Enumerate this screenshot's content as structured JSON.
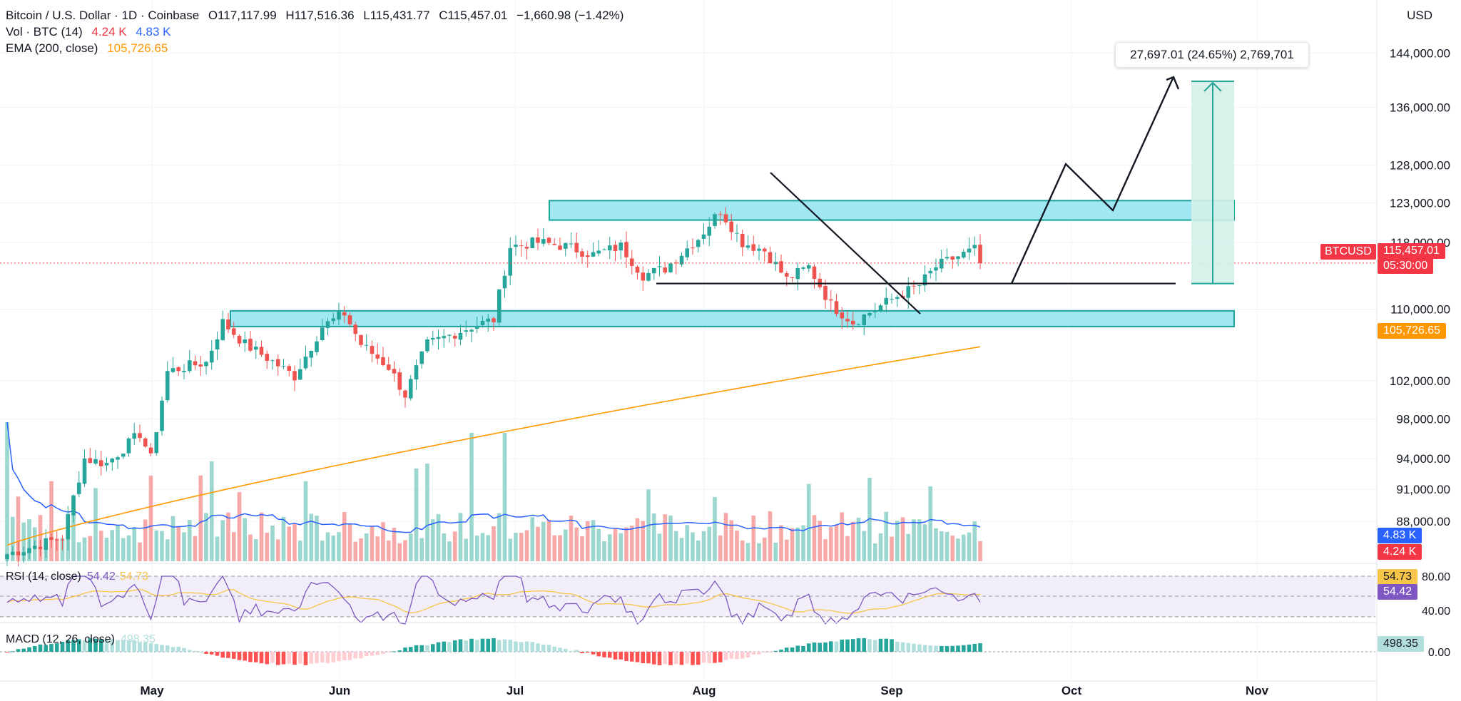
{
  "legend": {
    "title": "Bitcoin / U.S. Dollar · 1D · Coinbase",
    "open": "O117,117.99",
    "high": "H117,516.36",
    "low": "L115,431.77",
    "close": "C115,457.01",
    "change": "−1,660.98 (−1.42%)",
    "vol_label": "Vol · BTC (14)",
    "vol_value": "4.24 K",
    "vol_ma": "4.83 K",
    "ema_label": "EMA (200, close)",
    "ema_value": "105,726.65"
  },
  "currency": "USD",
  "measure_label": "27,697.01 (24.65%) 2,769,701",
  "price_axis": {
    "ticks": [
      "144,000.00",
      "136,000.00",
      "128,000.00",
      "123,000.00",
      "118,000.00",
      "110,000.00",
      "102,000.00",
      "98,000.00",
      "94,000.00",
      "91,000.00",
      "88,000.00"
    ],
    "tick_values": [
      144000,
      136000,
      128000,
      123000,
      118000,
      110000,
      102000,
      98000,
      94000,
      91000,
      88000
    ],
    "symbol_tag": "BTCUSD",
    "last_price_tag": "115,457.01",
    "countdown_tag": "05:30:00",
    "ema_tag": "105,726.65",
    "vol_ma_tag": "4.83 K",
    "vol_tag": "4.24 K"
  },
  "time_axis": {
    "labels": [
      "May",
      "Jun",
      "Jul",
      "Aug",
      "Sep",
      "Oct",
      "Nov"
    ]
  },
  "rsi": {
    "label": "RSI (14, close)",
    "value": "54.42",
    "ma_value": "54.73",
    "axis_ticks": [
      "80.00",
      "40.00"
    ],
    "tag_ma": "54.73",
    "tag_rsi": "54.42"
  },
  "macd": {
    "label": "MACD (12, 26, close)",
    "value": "498.35",
    "axis_tick": "0.00",
    "tag": "498.35"
  },
  "colors": {
    "up": "#26a69a",
    "down": "#ef5350",
    "ema": "#ff9800",
    "vol_ma": "#2962ff",
    "zone_fill": "#8fe3ee",
    "zone_border": "#1ba39c",
    "rsi": "#7e57c2",
    "rsi_ma": "#f7c548",
    "last_price": "#f23645",
    "projection": "#26a69a"
  },
  "chart_data": {
    "type": "candlestick",
    "title": "Bitcoin / U.S. Dollar · 1D · Coinbase",
    "y_scale": "log",
    "ylim": [
      84500,
      150000
    ],
    "x_months": [
      "May",
      "Jun",
      "Jul",
      "Aug",
      "Sep",
      "Oct",
      "Nov"
    ],
    "approx_close_path": [
      [
        0,
        85000
      ],
      [
        10,
        86500
      ],
      [
        14,
        94000
      ],
      [
        18,
        93500
      ],
      [
        24,
        96500
      ],
      [
        26,
        94000
      ],
      [
        29,
        103000
      ],
      [
        32,
        103500
      ],
      [
        36,
        104000
      ],
      [
        39,
        108500
      ],
      [
        43,
        106000
      ],
      [
        47,
        104500
      ],
      [
        52,
        102500
      ],
      [
        57,
        108000
      ],
      [
        61,
        109500
      ],
      [
        64,
        106000
      ],
      [
        69,
        103500
      ],
      [
        72,
        100500
      ],
      [
        76,
        106000
      ],
      [
        80,
        107000
      ],
      [
        84,
        108000
      ],
      [
        88,
        108800
      ],
      [
        91,
        117500
      ],
      [
        96,
        118000
      ],
      [
        101,
        117500
      ],
      [
        106,
        116500
      ],
      [
        111,
        117500
      ],
      [
        115,
        114000
      ],
      [
        119,
        114800
      ],
      [
        125,
        118500
      ],
      [
        129,
        122000
      ],
      [
        133,
        118000
      ],
      [
        137,
        117000
      ],
      [
        141,
        113500
      ],
      [
        145,
        115000
      ],
      [
        149,
        110500
      ],
      [
        153,
        108500
      ],
      [
        157,
        110000
      ],
      [
        161,
        111500
      ],
      [
        165,
        112800
      ],
      [
        168,
        115000
      ],
      [
        171,
        116000
      ],
      [
        175,
        117100
      ],
      [
        176,
        115457
      ]
    ],
    "ema200": {
      "name": "EMA (200, close)",
      "start": 85800,
      "end": 105726.65
    },
    "zones": [
      {
        "low": 120800,
        "high": 123300
      },
      {
        "low": 108000,
        "high": 109800
      }
    ],
    "support_line": 113000,
    "projection_target": 139500,
    "measure": {
      "from": 113000,
      "to": 140000,
      "label": "27,697.01 (24.65%) 2,769,701"
    },
    "last_price": 115457.01,
    "rsi_last": 54.42,
    "rsi_ma_last": 54.73,
    "macd_last": 498.35,
    "vol_last": 4.24,
    "vol_ma_last": 4.83
  }
}
